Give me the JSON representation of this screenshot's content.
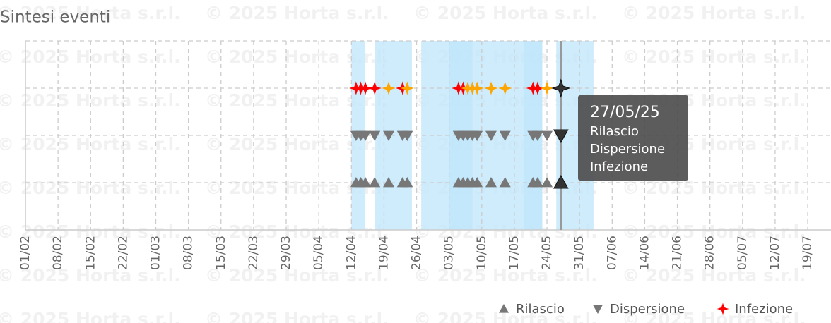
{
  "chart_data": {
    "type": "event-timeline",
    "title": "Sintesi eventi",
    "watermark": "© 2025 Horta s.r.l.",
    "xlim": [
      "01/02",
      "24/07"
    ],
    "xticks": [
      "01/02",
      "08/02",
      "15/02",
      "22/02",
      "01/03",
      "08/03",
      "15/03",
      "22/03",
      "29/03",
      "05/04",
      "12/04",
      "19/04",
      "26/04",
      "03/05",
      "10/05",
      "17/05",
      "24/05",
      "31/05",
      "07/06",
      "14/06",
      "21/06",
      "28/06",
      "05/07",
      "12/07",
      "19/07"
    ],
    "grid": true,
    "band_color": "#bfe6fb",
    "bands": [
      {
        "start": "12/04",
        "end": "15/04"
      },
      {
        "start": "17/04",
        "end": "25/04"
      },
      {
        "start": "27/04",
        "end": "23/05"
      },
      {
        "start": "03/05",
        "end": "08/05"
      },
      {
        "start": "19/05",
        "end": "23/05"
      },
      {
        "start": "26/05",
        "end": "03/06"
      }
    ],
    "series": [
      {
        "name": "Rilascio",
        "marker": "triangle-up",
        "color": "#777777",
        "x": [
          "13/04",
          "14/04",
          "15/04",
          "17/04",
          "20/04",
          "23/04",
          "24/04",
          "05/05",
          "06/05",
          "07/05",
          "08/05",
          "09/05",
          "12/05",
          "15/05",
          "21/05",
          "22/05",
          "24/05",
          "27/05"
        ],
        "colors": [
          "#777777",
          "#777777",
          "#777777",
          "#777777",
          "#777777",
          "#777777",
          "#777777",
          "#777777",
          "#777777",
          "#777777",
          "#777777",
          "#777777",
          "#777777",
          "#777777",
          "#777777",
          "#777777",
          "#777777",
          "#333333"
        ]
      },
      {
        "name": "Dispersione",
        "marker": "triangle-down",
        "color": "#777777",
        "x": [
          "13/04",
          "14/04",
          "15/04",
          "17/04",
          "20/04",
          "23/04",
          "24/04",
          "05/05",
          "06/05",
          "07/05",
          "08/05",
          "09/05",
          "12/05",
          "15/05",
          "21/05",
          "22/05",
          "24/05",
          "27/05"
        ],
        "colors": [
          "#777777",
          "#777777",
          "#777777",
          "#777777",
          "#777777",
          "#777777",
          "#777777",
          "#777777",
          "#777777",
          "#777777",
          "#777777",
          "#777777",
          "#777777",
          "#777777",
          "#777777",
          "#777777",
          "#777777",
          "#333333"
        ]
      },
      {
        "name": "Infezione",
        "marker": "star",
        "color": "#ff0000",
        "x": [
          "13/04",
          "14/04",
          "15/04",
          "17/04",
          "20/04",
          "23/04",
          "24/04",
          "05/05",
          "06/05",
          "07/05",
          "08/05",
          "09/05",
          "12/05",
          "15/05",
          "21/05",
          "22/05",
          "24/05",
          "27/05"
        ],
        "colors": [
          "#ff0000",
          "#ff0000",
          "#ff0000",
          "#ff0000",
          "#ffa500",
          "#ff0000",
          "#ffa500",
          "#ff0000",
          "#ff0000",
          "#ffa500",
          "#ffa500",
          "#ffa500",
          "#ffa500",
          "#ffa500",
          "#ff0000",
          "#ff0000",
          "#ffa500",
          "#333333"
        ]
      }
    ],
    "tooltip": {
      "title": "27/05/25",
      "x": "27/05"
    }
  }
}
